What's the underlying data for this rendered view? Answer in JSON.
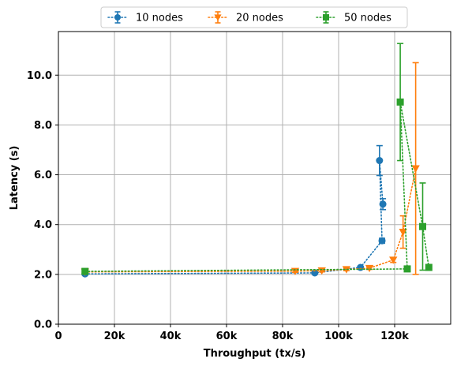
{
  "chart_data": {
    "type": "line",
    "xlabel": "Throughput (tx/s)",
    "ylabel": "Latency (s)",
    "xlim": [
      0,
      140000
    ],
    "ylim": [
      0,
      11.75
    ],
    "x_ticks": [
      0,
      20000,
      40000,
      60000,
      80000,
      100000,
      120000
    ],
    "x_tick_labels": [
      "0",
      "20k",
      "40k",
      "60k",
      "80k",
      "100k",
      "120k"
    ],
    "y_ticks": [
      0,
      2,
      4,
      6,
      8,
      10
    ],
    "y_tick_labels": [
      "0.0",
      "2.0",
      "4.0",
      "6.0",
      "8.0",
      "10.0"
    ],
    "grid": true,
    "legend_position": "top-center-outside",
    "series": [
      {
        "name": "10 nodes",
        "color": "#1f77b4",
        "marker": "circle",
        "line_style": "dotted",
        "points": [
          {
            "x": 9500,
            "y": 2.02,
            "err": 0.05
          },
          {
            "x": 91500,
            "y": 2.06,
            "err": 0.05
          },
          {
            "x": 107800,
            "y": 2.28,
            "err": 0.05
          },
          {
            "x": 115500,
            "y": 3.35,
            "err": 0.1
          },
          {
            "x": 114600,
            "y": 6.57,
            "err": 0.6
          },
          {
            "x": 115800,
            "y": 4.82,
            "err": 0.22
          }
        ]
      },
      {
        "name": "20 nodes",
        "color": "#ff7f0e",
        "marker": "triangle-down",
        "line_style": "dotted",
        "points": [
          {
            "x": 9500,
            "y": 2.1,
            "err": 0.05
          },
          {
            "x": 84500,
            "y": 2.13,
            "err": 0.05
          },
          {
            "x": 94000,
            "y": 2.15,
            "err": 0.05
          },
          {
            "x": 102800,
            "y": 2.2,
            "err": 0.05
          },
          {
            "x": 111000,
            "y": 2.25,
            "err": 0.05
          },
          {
            "x": 119500,
            "y": 2.58,
            "err": 0.1
          },
          {
            "x": 123000,
            "y": 3.7,
            "err": 0.65
          },
          {
            "x": 127500,
            "y": 6.25,
            "err": 4.25
          }
        ]
      },
      {
        "name": "50 nodes",
        "color": "#2ca02c",
        "marker": "square",
        "line_style": "dotted",
        "points": [
          {
            "x": 9500,
            "y": 2.12,
            "err": 0.05
          },
          {
            "x": 124500,
            "y": 2.22,
            "err": 0.05
          },
          {
            "x": 122000,
            "y": 8.92,
            "err": 2.35
          },
          {
            "x": 130000,
            "y": 3.92,
            "err": 1.75
          },
          {
            "x": 132200,
            "y": 2.28,
            "err": 0.05
          }
        ]
      }
    ]
  }
}
